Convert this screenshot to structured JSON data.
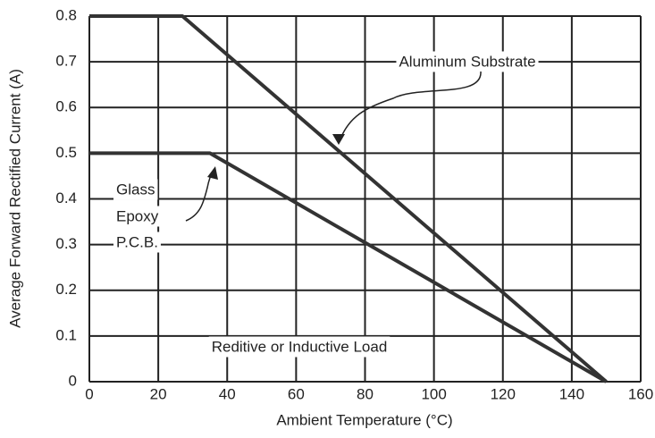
{
  "chart_data": {
    "type": "line",
    "xlabel": "Ambient Temperature (°C)",
    "ylabel": "Average Forward Rectified Current  (A)",
    "xlim": [
      0,
      160
    ],
    "xticks": [
      0,
      20,
      40,
      60,
      80,
      100,
      120,
      140,
      160
    ],
    "ylim": [
      0,
      0.8
    ],
    "yticks": [
      0,
      0.1,
      0.2,
      0.3,
      0.4,
      0.5,
      0.6,
      0.7,
      0.8
    ],
    "grid": true,
    "series": [
      {
        "name": "Aluminum Substrate",
        "color": "#333333",
        "x": [
          0,
          27,
          150
        ],
        "values": [
          0.8,
          0.8,
          0
        ]
      },
      {
        "name": "Glass Epoxy P.C.B.",
        "color": "#333333",
        "x": [
          0,
          35,
          150
        ],
        "values": [
          0.5,
          0.5,
          0
        ]
      }
    ],
    "annotations": [
      "Aluminum Substrate",
      "Glass",
      "Epoxy",
      "P.C.B.",
      "Reditive or Inductive Load"
    ]
  }
}
